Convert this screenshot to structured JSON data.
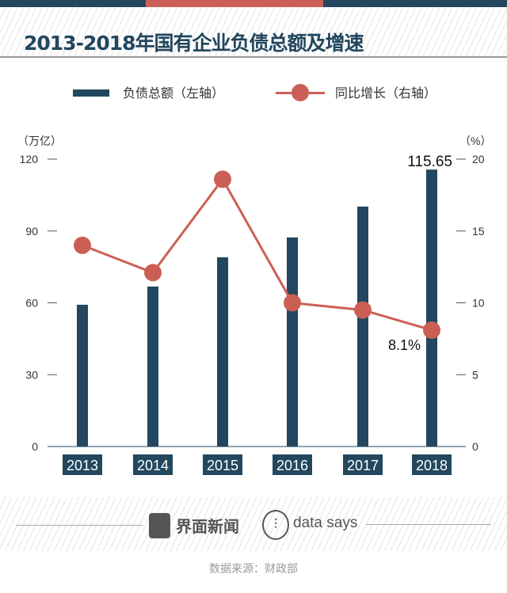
{
  "title": "2013-2018年国有企业负债总额及增速",
  "colors": {
    "bar": "#22475e",
    "line": "#cc5f55",
    "top_bar": [
      "#22475e",
      "#cc5f55",
      "#22475e"
    ]
  },
  "chart_data": {
    "type": "bar+line",
    "title": "2013-2018年国有企业负债总额及增速",
    "categories": [
      "2013",
      "2014",
      "2015",
      "2016",
      "2017",
      "2018"
    ],
    "series": [
      {
        "name": "负债总额（左轴）",
        "type": "bar",
        "axis": "left",
        "values": [
          59.2,
          66.8,
          79.0,
          87.3,
          100.2,
          115.65
        ]
      },
      {
        "name": "同比增长（右轴）",
        "type": "line",
        "axis": "right",
        "values": [
          14.0,
          12.1,
          18.6,
          10.0,
          9.5,
          8.1
        ]
      }
    ],
    "left_axis": {
      "unit": "（万亿）",
      "range": [
        0,
        120
      ],
      "ticks": [
        "0",
        "30",
        "60",
        "90",
        "120"
      ]
    },
    "right_axis": {
      "unit": "（%）",
      "range": [
        0,
        20
      ],
      "ticks": [
        "0",
        "5",
        "10",
        "15",
        "20"
      ]
    },
    "annotations": [
      "115.65",
      "8.1%"
    ],
    "legend_position": "top"
  },
  "footer": {
    "brand1": "界面新闻",
    "brand2": "data says",
    "source": "数据来源：财政部"
  }
}
